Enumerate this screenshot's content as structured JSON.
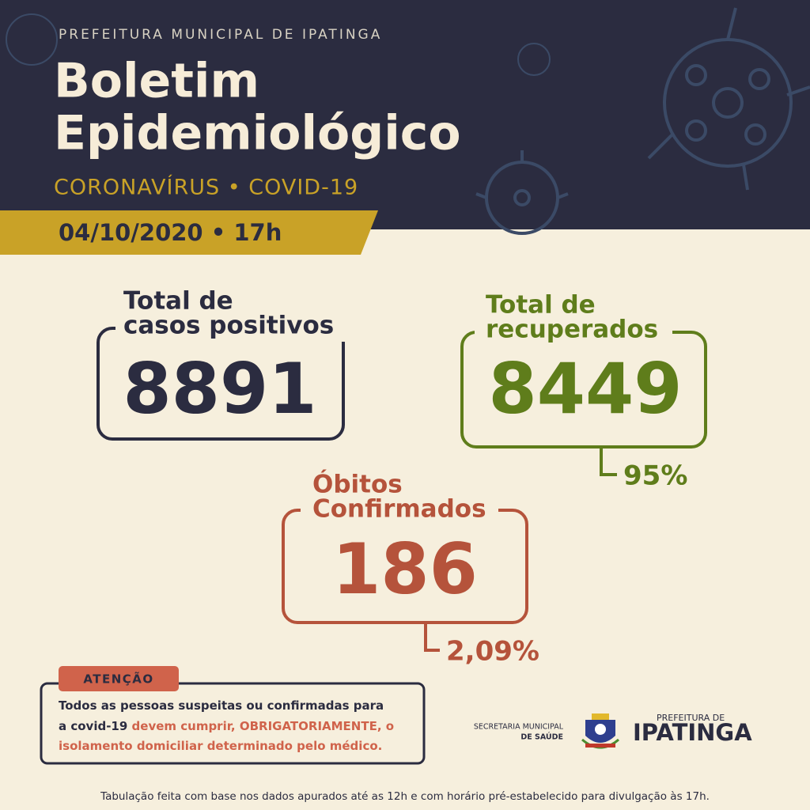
{
  "header": {
    "org": "PREFEITURA MUNICIPAL DE IPATINGA",
    "title_lines": [
      "Boletim",
      "Epidemiológico"
    ],
    "subtitle": "CORONAVÍRUS • COVID-19",
    "date": "04/10/2020 • 17h"
  },
  "cards": [
    {
      "label_lines": [
        "Total de",
        "casos positivos"
      ],
      "value": "8891"
    },
    {
      "label_lines": [
        "Total de",
        "recuperados"
      ],
      "value": "8449",
      "percent": "95%"
    },
    {
      "label_lines": [
        "Óbitos",
        "Confirmados"
      ],
      "value": "186",
      "percent": "2,09%"
    }
  ],
  "notice": {
    "tag": "ATENÇÃO",
    "lines": [
      [
        "Todos as pessoas suspeitas ou confirmadas para"
      ],
      [
        "a covid-19 ",
        "devem cumprir, OBRIGATORIAMENTE, o"
      ],
      [
        "isolamento domiciliar determinado pelo médico."
      ]
    ]
  },
  "logo": {
    "secretaria_lines": [
      "SECRETARIA MUNICIPAL",
      "DE SAÚDE"
    ],
    "prefeitura": "PREFEITURA DE",
    "city": "IPATINGA"
  },
  "footer": "Tabulação feita com base nos dados apurados até as 12h e com horário pré-estabelecido para divulgação às 17h."
}
